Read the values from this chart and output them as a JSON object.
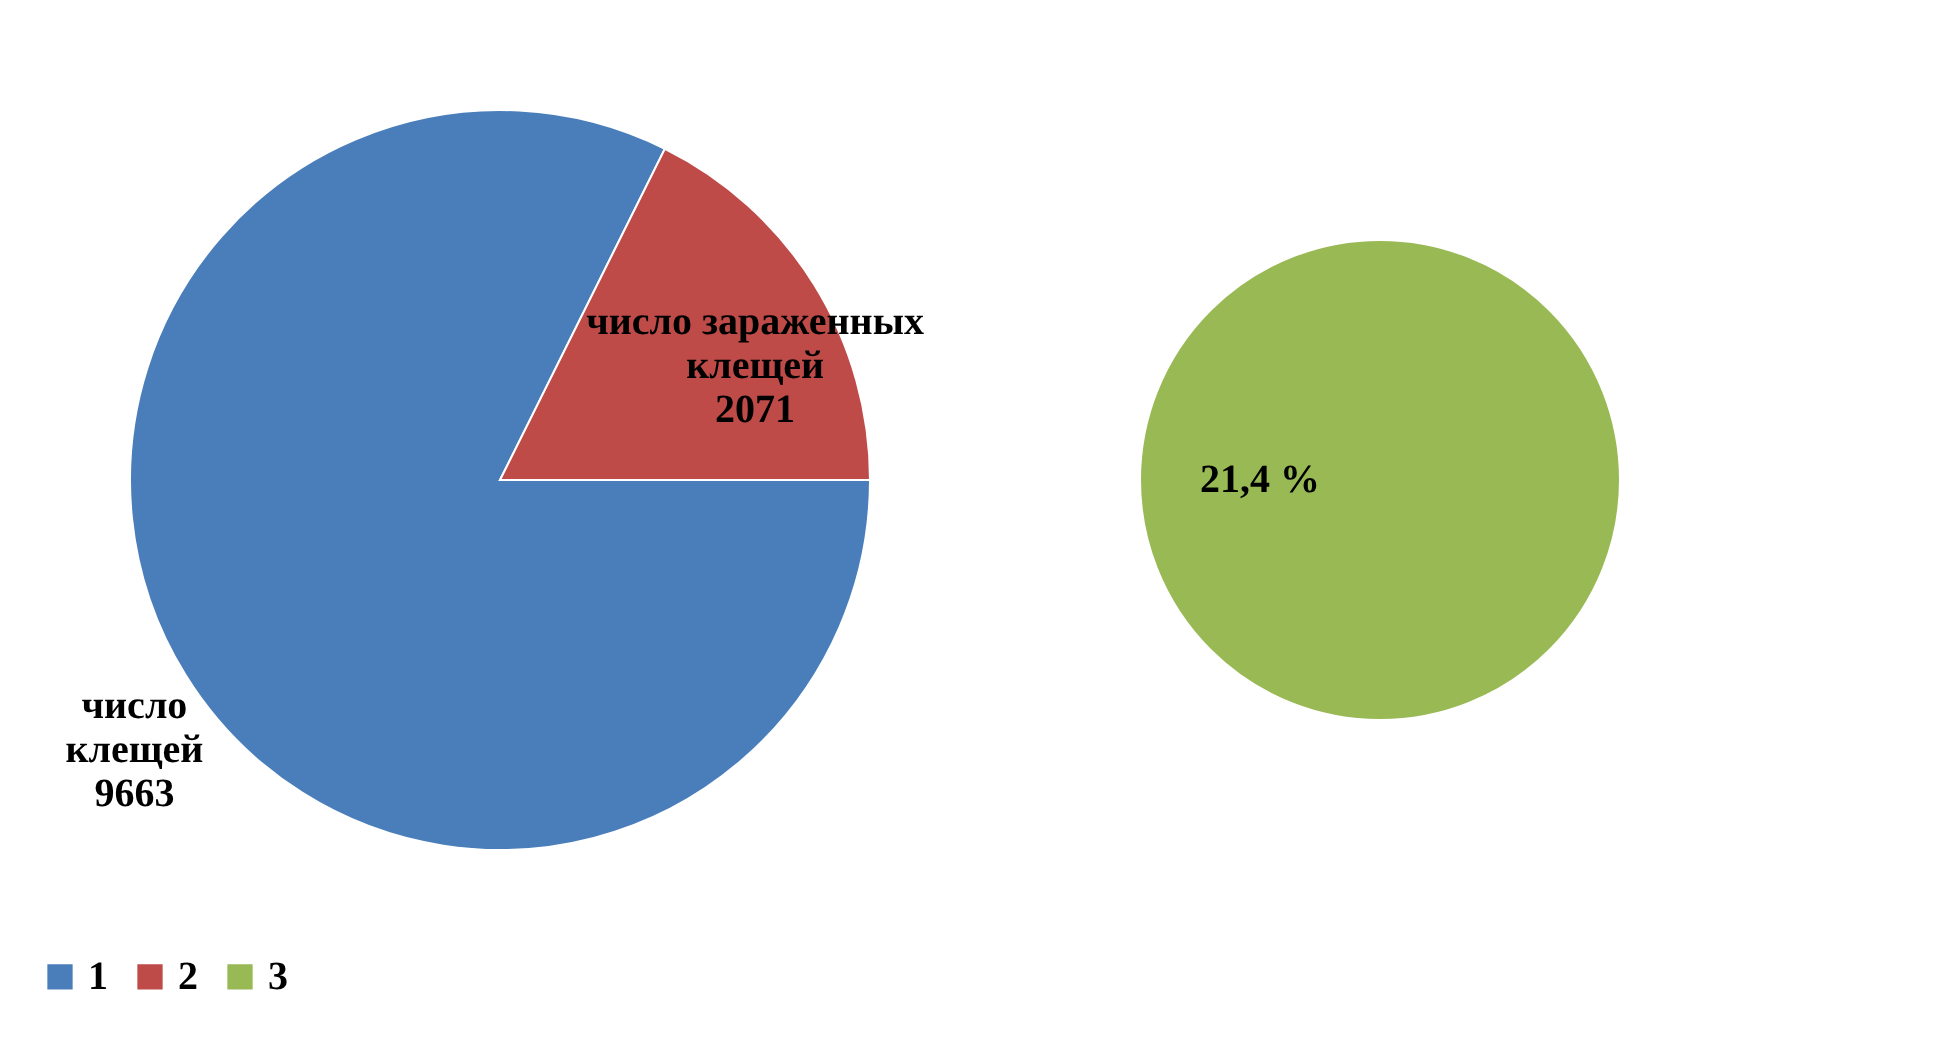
{
  "chart_data": [
    {
      "type": "pie",
      "categories": [
        "1",
        "2"
      ],
      "values": [
        9663,
        2071
      ],
      "colors": [
        "#4a7ebb",
        "#be4b48"
      ],
      "value_labels": [
        "число\nклещей\n9663",
        "число зараженных\nклещей\n2071"
      ],
      "legend": "bottom"
    },
    {
      "type": "pie",
      "categories": [
        "3"
      ],
      "values": [
        21.4
      ],
      "colors": [
        "#98b954"
      ],
      "value_labels": [
        "21,4 %"
      ]
    }
  ]
}
